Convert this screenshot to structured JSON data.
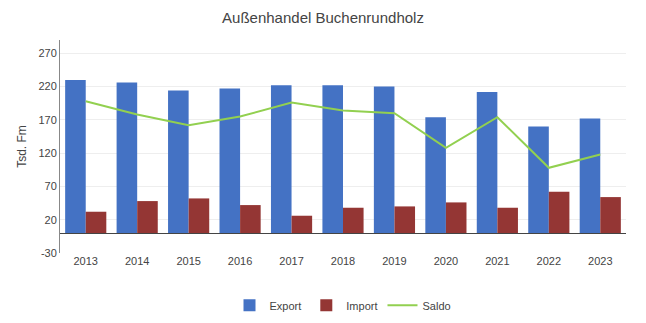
{
  "chart_data": {
    "type": "bar",
    "title": "Außenhandel Buchenrundholz",
    "ylabel": "Tsd. Fm",
    "categories": [
      "2013",
      "2014",
      "2015",
      "2016",
      "2017",
      "2018",
      "2019",
      "2020",
      "2021",
      "2022",
      "2023"
    ],
    "series": [
      {
        "name": "Export",
        "type": "bar",
        "color": "#4472C4",
        "values": [
          230,
          226,
          214,
          217,
          222,
          222,
          220,
          174,
          212,
          160,
          172
        ]
      },
      {
        "name": "Import",
        "type": "bar",
        "color": "#943634",
        "values": [
          32,
          48,
          52,
          42,
          26,
          38,
          40,
          46,
          38,
          62,
          54
        ]
      },
      {
        "name": "Saldo",
        "type": "line",
        "color": "#92D050",
        "values": [
          198,
          178,
          162,
          175,
          196,
          184,
          180,
          128,
          174,
          98,
          118
        ]
      }
    ],
    "ylim": [
      -30,
      290
    ],
    "yticks": [
      -30,
      20,
      70,
      120,
      170,
      220,
      270
    ],
    "grid": true,
    "legend": "bottom"
  }
}
